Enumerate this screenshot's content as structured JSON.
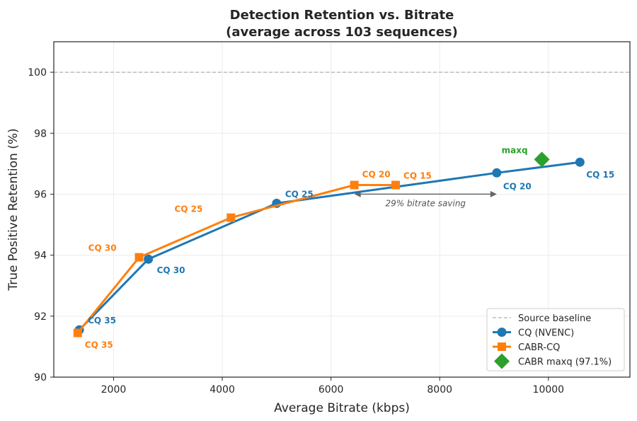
{
  "chart_data": {
    "type": "line",
    "title": "Detection Retention vs. Bitrate",
    "subtitle": "(average across 103 sequences)",
    "xlabel": "Average Bitrate (kbps)",
    "ylabel": "True Positive Retention (%)",
    "xlim": [
      900,
      11500
    ],
    "ylim": [
      90,
      101
    ],
    "xticks": [
      2000,
      4000,
      6000,
      8000,
      10000
    ],
    "yticks": [
      90,
      92,
      94,
      96,
      98,
      100
    ],
    "grid": true,
    "legend_position": "lower-right",
    "baseline": {
      "name": "Source baseline",
      "y": 100,
      "color": "#b0b0b0"
    },
    "series": [
      {
        "name": "CQ (NVENC)",
        "color": "#1f77b4",
        "marker": "circle",
        "points": [
          {
            "x": 1370,
            "y": 91.55,
            "label": "CQ 35"
          },
          {
            "x": 2640,
            "y": 93.87,
            "label": "CQ 30"
          },
          {
            "x": 5000,
            "y": 95.7,
            "label": "CQ 25"
          },
          {
            "x": 9050,
            "y": 96.7,
            "label": "CQ 20"
          },
          {
            "x": 10580,
            "y": 97.05,
            "label": "CQ 15"
          }
        ]
      },
      {
        "name": "CABR-CQ",
        "color": "#ff7f0e",
        "marker": "square",
        "points": [
          {
            "x": 1340,
            "y": 91.45,
            "label": "CQ 35"
          },
          {
            "x": 2470,
            "y": 93.93,
            "label": "CQ 30"
          },
          {
            "x": 4160,
            "y": 95.23,
            "label": "CQ 25"
          },
          {
            "x": 6430,
            "y": 96.3,
            "label": "CQ 20"
          },
          {
            "x": 7190,
            "y": 96.3,
            "label": "CQ 15"
          }
        ]
      },
      {
        "name": "CABR maxq (97.1%)",
        "color": "#2ca02c",
        "marker": "diamond",
        "points": [
          {
            "x": 9880,
            "y": 97.14,
            "label": "maxq"
          }
        ]
      }
    ],
    "annotation": {
      "text": "29% bitrate saving",
      "x_start": 6430,
      "x_end": 9050,
      "y": 95.7
    }
  }
}
